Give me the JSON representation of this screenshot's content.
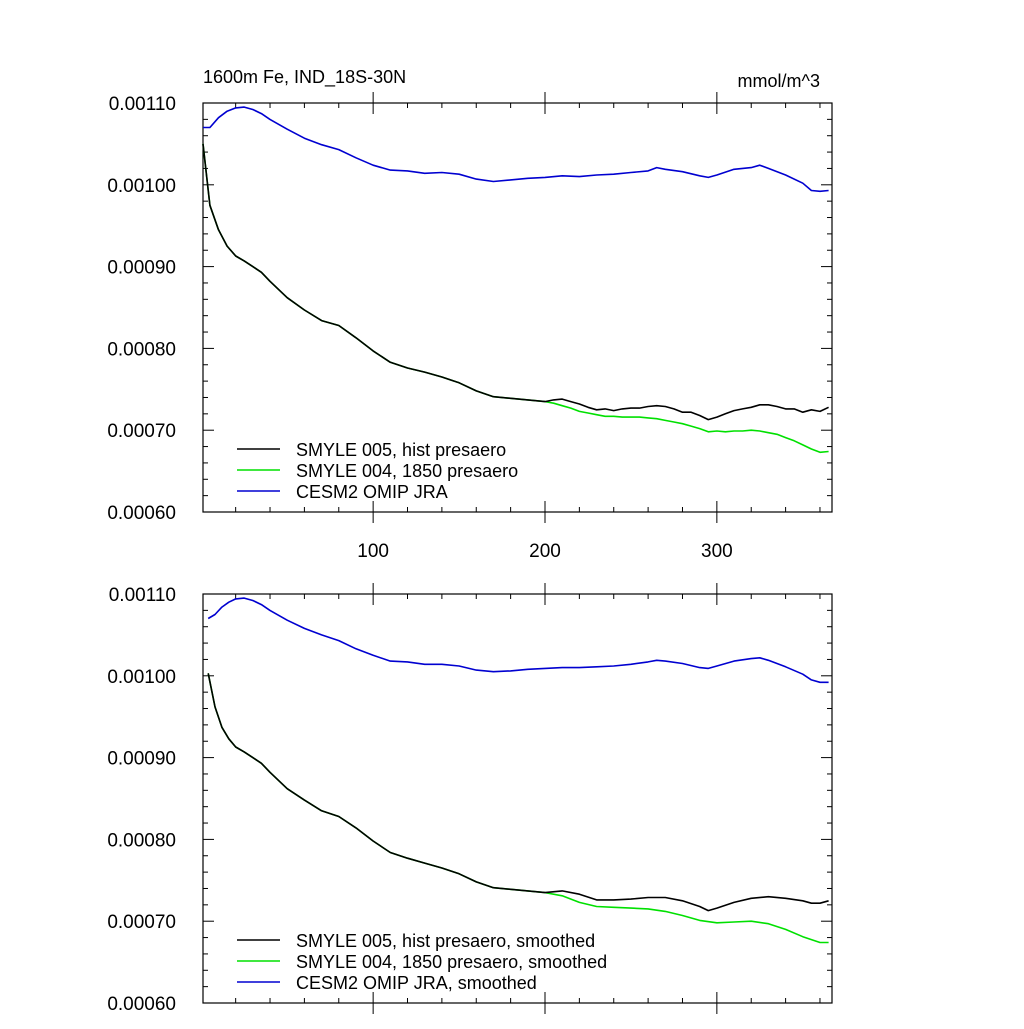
{
  "chart_data": [
    {
      "type": "line",
      "title": "1600m Fe, IND_18S-30N",
      "units": "mmol/m^3",
      "xlim": [
        1,
        367
      ],
      "ylim": [
        0.0006,
        0.0011
      ],
      "yticks": [
        "0.00060",
        "0.00070",
        "0.00080",
        "0.00090",
        "0.00100",
        "0.00110"
      ],
      "xticks": [
        "100",
        "200",
        "300"
      ],
      "legend_position": "bottom-left",
      "series": [
        {
          "name": "SMYLE 005, hist presaero",
          "color": "#000000",
          "x": [
            1,
            5,
            10,
            15,
            20,
            25,
            30,
            35,
            40,
            50,
            60,
            70,
            80,
            90,
            100,
            110,
            120,
            130,
            140,
            150,
            160,
            170,
            180,
            190,
            200,
            205,
            210,
            215,
            220,
            225,
            230,
            235,
            240,
            245,
            250,
            255,
            260,
            265,
            270,
            275,
            280,
            285,
            290,
            295,
            300,
            305,
            310,
            315,
            320,
            325,
            330,
            335,
            340,
            345,
            350,
            355,
            360,
            365
          ],
          "y": [
            0.00105,
            0.000975,
            0.000945,
            0.000925,
            0.000913,
            0.000907,
            0.0009,
            0.000893,
            0.000882,
            0.000862,
            0.000847,
            0.000834,
            0.000828,
            0.000813,
            0.000797,
            0.000783,
            0.000776,
            0.000771,
            0.000765,
            0.000758,
            0.000748,
            0.000741,
            0.000739,
            0.000737,
            0.000735,
            0.000737,
            0.000738,
            0.000735,
            0.000732,
            0.000728,
            0.000725,
            0.000726,
            0.000724,
            0.000726,
            0.000727,
            0.000727,
            0.000729,
            0.00073,
            0.000729,
            0.000726,
            0.000722,
            0.000722,
            0.000718,
            0.000713,
            0.000716,
            0.00072,
            0.000724,
            0.000726,
            0.000728,
            0.000731,
            0.000731,
            0.000729,
            0.000726,
            0.000726,
            0.000722,
            0.000725,
            0.000723,
            0.000728
          ]
        },
        {
          "name": "SMYLE 004, 1850 presaero",
          "color": "#00e000",
          "x": [
            1,
            5,
            10,
            15,
            20,
            25,
            30,
            35,
            40,
            50,
            60,
            70,
            80,
            90,
            100,
            110,
            120,
            130,
            140,
            150,
            160,
            170,
            180,
            190,
            200,
            205,
            210,
            215,
            220,
            225,
            230,
            235,
            240,
            245,
            250,
            255,
            260,
            265,
            270,
            275,
            280,
            285,
            290,
            295,
            300,
            305,
            310,
            315,
            320,
            325,
            330,
            335,
            340,
            345,
            350,
            355,
            360,
            365
          ],
          "y": [
            0.00105,
            0.000975,
            0.000945,
            0.000925,
            0.000913,
            0.000907,
            0.0009,
            0.000893,
            0.000882,
            0.000862,
            0.000847,
            0.000834,
            0.000828,
            0.000813,
            0.000797,
            0.000783,
            0.000776,
            0.000771,
            0.000765,
            0.000758,
            0.000748,
            0.000741,
            0.000739,
            0.000737,
            0.000735,
            0.000733,
            0.00073,
            0.000727,
            0.000723,
            0.000721,
            0.000719,
            0.000717,
            0.000717,
            0.000716,
            0.000716,
            0.000716,
            0.000715,
            0.000714,
            0.000712,
            0.00071,
            0.000708,
            0.000705,
            0.000702,
            0.000698,
            0.000699,
            0.000698,
            0.000699,
            0.000699,
            0.0007,
            0.000699,
            0.000697,
            0.000695,
            0.000691,
            0.000687,
            0.000682,
            0.000677,
            0.000673,
            0.000674
          ]
        },
        {
          "name": "CESM2 OMIP JRA",
          "color": "#0000d0",
          "x": [
            1,
            5,
            10,
            15,
            20,
            25,
            30,
            35,
            40,
            50,
            60,
            70,
            80,
            90,
            100,
            110,
            120,
            130,
            140,
            150,
            160,
            170,
            180,
            190,
            200,
            210,
            220,
            230,
            240,
            250,
            260,
            265,
            270,
            280,
            290,
            295,
            300,
            310,
            320,
            325,
            330,
            340,
            350,
            355,
            360,
            365
          ],
          "y": [
            0.00107,
            0.00107,
            0.001082,
            0.00109,
            0.001094,
            0.001095,
            0.001092,
            0.001087,
            0.00108,
            0.001068,
            0.001057,
            0.001049,
            0.001043,
            0.001033,
            0.001024,
            0.001018,
            0.001017,
            0.001014,
            0.001015,
            0.001013,
            0.001007,
            0.001004,
            0.001006,
            0.001008,
            0.001009,
            0.001011,
            0.00101,
            0.001012,
            0.001013,
            0.001015,
            0.001017,
            0.001021,
            0.001019,
            0.001016,
            0.001011,
            0.001009,
            0.001012,
            0.001019,
            0.001021,
            0.001024,
            0.00102,
            0.001012,
            0.001002,
            0.000993,
            0.000992,
            0.000993
          ]
        }
      ]
    },
    {
      "type": "line",
      "xlim": [
        1,
        367
      ],
      "ylim": [
        0.0006,
        0.0011
      ],
      "yticks": [
        "0.00060",
        "0.00070",
        "0.00080",
        "0.00090",
        "0.00100",
        "0.00110"
      ],
      "legend_position": "bottom-left",
      "series": [
        {
          "name": "SMYLE 005, hist presaero, smoothed",
          "color": "#000000",
          "x": [
            4,
            8,
            12,
            16,
            20,
            25,
            30,
            35,
            40,
            50,
            60,
            70,
            80,
            90,
            100,
            110,
            120,
            130,
            140,
            150,
            160,
            170,
            180,
            190,
            200,
            210,
            220,
            230,
            240,
            250,
            260,
            270,
            280,
            290,
            295,
            300,
            310,
            320,
            330,
            340,
            350,
            355,
            360,
            365
          ],
          "y": [
            0.001003,
            0.000962,
            0.000937,
            0.000923,
            0.000913,
            0.000907,
            0.0009,
            0.000893,
            0.000882,
            0.000862,
            0.000848,
            0.000835,
            0.000828,
            0.000814,
            0.000798,
            0.000784,
            0.000777,
            0.000771,
            0.000765,
            0.000758,
            0.000748,
            0.000741,
            0.000739,
            0.000737,
            0.000735,
            0.000737,
            0.000733,
            0.000726,
            0.000726,
            0.000727,
            0.000729,
            0.000729,
            0.000725,
            0.000718,
            0.000713,
            0.000716,
            0.000723,
            0.000728,
            0.00073,
            0.000728,
            0.000725,
            0.000722,
            0.000722,
            0.000725
          ]
        },
        {
          "name": "SMYLE 004, 1850 presaero, smoothed",
          "color": "#00e000",
          "x": [
            4,
            8,
            12,
            16,
            20,
            25,
            30,
            35,
            40,
            50,
            60,
            70,
            80,
            90,
            100,
            110,
            120,
            130,
            140,
            150,
            160,
            170,
            180,
            190,
            200,
            210,
            220,
            230,
            240,
            250,
            260,
            270,
            280,
            290,
            300,
            310,
            320,
            330,
            340,
            350,
            360,
            365
          ],
          "y": [
            0.001003,
            0.000962,
            0.000937,
            0.000923,
            0.000913,
            0.000907,
            0.0009,
            0.000893,
            0.000882,
            0.000862,
            0.000848,
            0.000835,
            0.000828,
            0.000814,
            0.000798,
            0.000784,
            0.000777,
            0.000771,
            0.000765,
            0.000758,
            0.000748,
            0.000741,
            0.000739,
            0.000737,
            0.000735,
            0.000731,
            0.000723,
            0.000718,
            0.000717,
            0.000716,
            0.000715,
            0.000712,
            0.000707,
            0.000701,
            0.000698,
            0.000699,
            0.0007,
            0.000697,
            0.00069,
            0.000681,
            0.000674,
            0.000674
          ]
        },
        {
          "name": "CESM2 OMIP JRA, smoothed",
          "color": "#0000d0",
          "x": [
            4,
            8,
            12,
            16,
            20,
            25,
            30,
            35,
            40,
            50,
            60,
            70,
            80,
            90,
            100,
            110,
            120,
            130,
            140,
            150,
            160,
            170,
            180,
            190,
            200,
            210,
            220,
            230,
            240,
            250,
            260,
            265,
            270,
            280,
            290,
            295,
            300,
            310,
            320,
            325,
            330,
            340,
            350,
            355,
            360,
            365
          ],
          "y": [
            0.00107,
            0.001075,
            0.001084,
            0.00109,
            0.001094,
            0.001095,
            0.001092,
            0.001087,
            0.00108,
            0.001068,
            0.001058,
            0.00105,
            0.001043,
            0.001033,
            0.001025,
            0.001018,
            0.001017,
            0.001014,
            0.001014,
            0.001012,
            0.001007,
            0.001005,
            0.001006,
            0.001008,
            0.001009,
            0.00101,
            0.00101,
            0.001011,
            0.001012,
            0.001014,
            0.001017,
            0.001019,
            0.001018,
            0.001015,
            0.00101,
            0.001009,
            0.001012,
            0.001018,
            0.001021,
            0.001022,
            0.001019,
            0.001011,
            0.001002,
            0.000995,
            0.000992,
            0.000992
          ]
        }
      ]
    }
  ]
}
